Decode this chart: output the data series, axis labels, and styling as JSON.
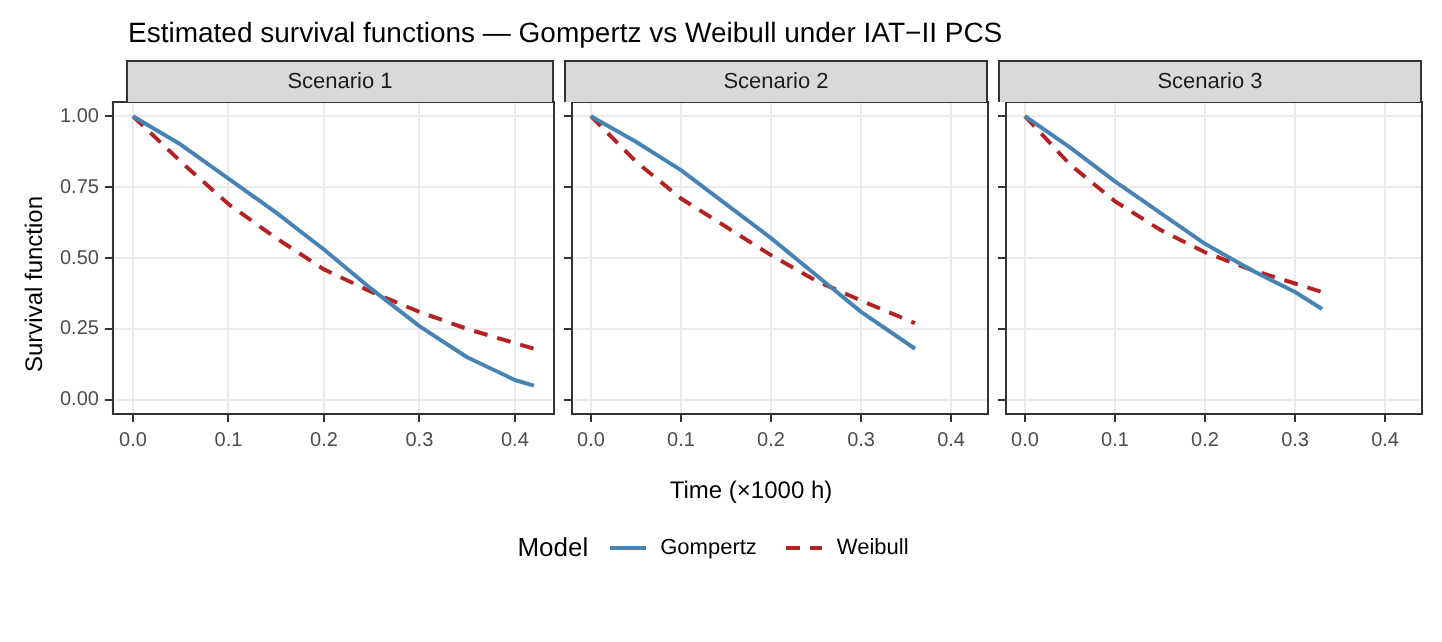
{
  "chart_data": [
    {
      "type": "line",
      "title": "Estimated survival functions — Gompertz vs Weibull under IAT−II PCS",
      "subtitle": "Scenario 1",
      "ylabel": "Survival function",
      "grid": true,
      "xlim": [
        -0.021,
        0.441
      ],
      "ylim": [
        -0.05,
        1.05
      ],
      "xticks": [
        {
          "value": 0,
          "label": "0.0"
        },
        {
          "value": 0.1,
          "label": "0.1"
        },
        {
          "value": 0.2,
          "label": "0.2"
        },
        {
          "value": 0.3,
          "label": "0.3"
        },
        {
          "value": 0.4,
          "label": "0.4"
        }
      ],
      "yticks": [
        {
          "value": 0,
          "label": "0.00"
        },
        {
          "value": 0.25,
          "label": "0.25"
        },
        {
          "value": 0.5,
          "label": "0.50"
        },
        {
          "value": 0.75,
          "label": "0.75"
        },
        {
          "value": 1,
          "label": "1.00"
        }
      ],
      "x": [
        0,
        0.05,
        0.1,
        0.15,
        0.2,
        0.25,
        0.3,
        0.35,
        0.4,
        0.42
      ],
      "series": [
        {
          "color": "#4682b4",
          "line_style": "solid",
          "values": [
            1,
            0.9,
            0.78,
            0.66,
            0.53,
            0.39,
            0.26,
            0.15,
            0.07,
            0.05
          ]
        },
        {
          "color": "#b22222",
          "line_style": "dashed",
          "values": [
            1,
            0.84,
            0.69,
            0.57,
            0.46,
            0.38,
            0.31,
            0.25,
            0.2,
            0.18
          ]
        }
      ]
    },
    {
      "type": "line",
      "subtitle": "Scenario 2",
      "xlabel": "Time (×1000 h)",
      "legend": "bottom",
      "legend_title": "Model",
      "grid": true,
      "tick_labels": "x",
      "xlim": [
        -0.021,
        0.441
      ],
      "ylim": [
        -0.05,
        1.05
      ],
      "xticks": [
        {
          "value": 0,
          "label": "0.0"
        },
        {
          "value": 0.1,
          "label": "0.1"
        },
        {
          "value": 0.2,
          "label": "0.2"
        },
        {
          "value": 0.3,
          "label": "0.3"
        },
        {
          "value": 0.4,
          "label": "0.4"
        }
      ],
      "yticks": [
        0,
        0.25,
        0.5,
        0.75,
        1
      ],
      "x": [
        0,
        0.05,
        0.1,
        0.15,
        0.2,
        0.25,
        0.3,
        0.36
      ],
      "series": [
        {
          "name": "Gompertz",
          "color": "#4682b4",
          "line_style": "solid",
          "values": [
            1,
            0.91,
            0.81,
            0.69,
            0.57,
            0.44,
            0.31,
            0.18
          ]
        },
        {
          "name": "Weibull",
          "color": "#b22222",
          "line_style": "dashed",
          "values": [
            1,
            0.84,
            0.71,
            0.61,
            0.51,
            0.42,
            0.35,
            0.27
          ]
        }
      ]
    },
    {
      "type": "line",
      "subtitle": "Scenario 3",
      "grid": true,
      "tick_labels": "x",
      "xlim": [
        -0.021,
        0.441
      ],
      "ylim": [
        -0.05,
        1.05
      ],
      "xticks": [
        {
          "value": 0,
          "label": "0.0"
        },
        {
          "value": 0.1,
          "label": "0.1"
        },
        {
          "value": 0.2,
          "label": "0.2"
        },
        {
          "value": 0.3,
          "label": "0.3"
        },
        {
          "value": 0.4,
          "label": "0.4"
        }
      ],
      "yticks": [
        0,
        0.25,
        0.5,
        0.75,
        1
      ],
      "x": [
        0,
        0.05,
        0.1,
        0.15,
        0.2,
        0.25,
        0.3,
        0.33
      ],
      "series": [
        {
          "color": "#4682b4",
          "line_style": "solid",
          "values": [
            1,
            0.89,
            0.77,
            0.66,
            0.55,
            0.46,
            0.38,
            0.32
          ]
        },
        {
          "color": "#b22222",
          "line_style": "dashed",
          "values": [
            1,
            0.83,
            0.7,
            0.6,
            0.52,
            0.46,
            0.41,
            0.38
          ]
        }
      ]
    }
  ]
}
